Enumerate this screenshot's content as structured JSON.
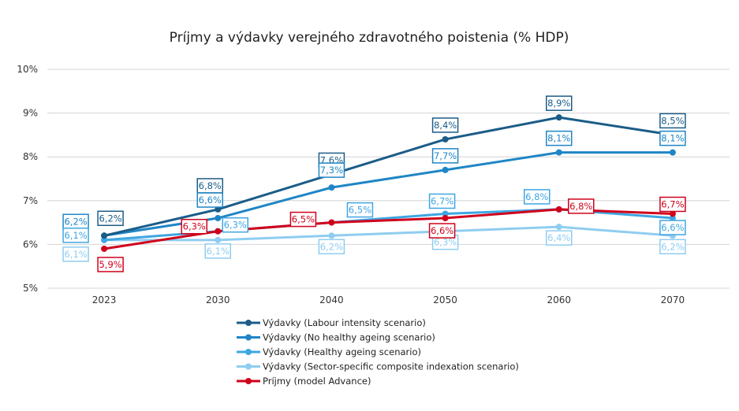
{
  "chart_data": {
    "type": "line",
    "title": "Príjmy a výdavky verejného zdravotného poistenia (% HDP)",
    "categories": [
      "2023",
      "2030",
      "2040",
      "2050",
      "2060",
      "2070"
    ],
    "y_ticks": [
      "5%",
      "6%",
      "7%",
      "8%",
      "9%",
      "10%"
    ],
    "ylim": [
      5,
      10
    ],
    "grid": true,
    "legend_position": "bottom",
    "series": [
      {
        "name": "Výdavky (Labour intensity scenario)",
        "color": "#1b5c88",
        "values": [
          6.2,
          6.8,
          7.6,
          8.4,
          8.9,
          8.5
        ],
        "labels": [
          "6,2%",
          "6,8%",
          "7,6%",
          "8,4%",
          "8,9%",
          "8,5%"
        ]
      },
      {
        "name": "Výdavky (No healthy ageing scenario)",
        "color": "#1f86c6",
        "values": [
          6.2,
          6.6,
          7.3,
          7.7,
          8.1,
          8.1
        ],
        "labels": [
          "6,2%",
          "6,6%",
          "7,3%",
          "7,7%",
          "8,1%",
          "8,1%"
        ]
      },
      {
        "name": "Výdavky (Healthy ageing scenario)",
        "color": "#3ea6e2",
        "values": [
          6.1,
          6.3,
          6.5,
          6.7,
          6.8,
          6.6
        ],
        "labels": [
          "6,1%",
          "6,3%",
          "6,5%",
          "6,7%",
          "6,8%",
          "6,6%"
        ]
      },
      {
        "name": "Výdavky (Sector-specific composite indexation scenario)",
        "color": "#8fcdf0",
        "values": [
          6.1,
          6.1,
          6.2,
          6.3,
          6.4,
          6.2
        ],
        "labels": [
          "6,1%",
          "6,1%",
          "6,2%",
          "6,3%",
          "6,4%",
          "6,2%"
        ]
      },
      {
        "name": "Príjmy (model Advance)",
        "color": "#d0021b",
        "values": [
          5.9,
          6.3,
          6.5,
          6.6,
          6.8,
          6.7
        ],
        "labels": [
          "5,9%",
          "6,3%",
          "6,5%",
          "6,6%",
          "6,8%",
          "6,7%"
        ]
      }
    ]
  }
}
